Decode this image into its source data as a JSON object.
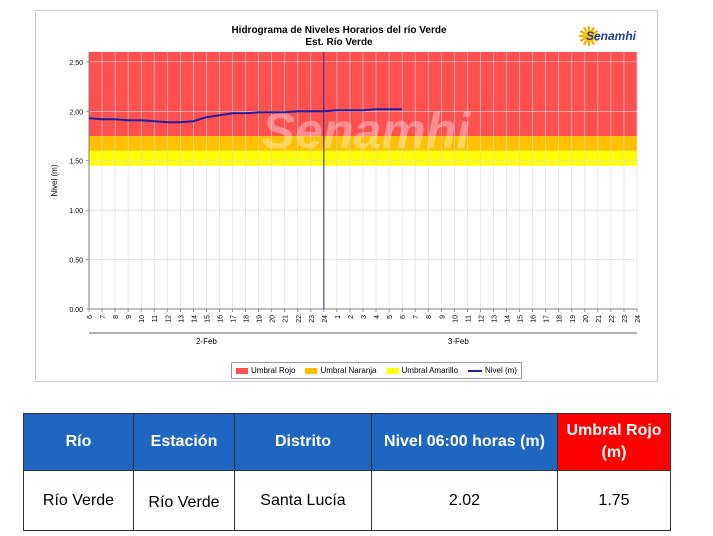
{
  "chart_data": {
    "type": "line",
    "title": "Hidrograma de Niveles Horarios del río Verde",
    "subtitle": "Est. Río Verde",
    "ylabel": "Nivel (m)",
    "ylim": [
      0.0,
      2.6
    ],
    "yticks": [
      "0.00",
      "0.50",
      "1.00",
      "1.50",
      "2.00",
      "2.50"
    ],
    "xticks": [
      "6",
      "7",
      "8",
      "9",
      "10",
      "11",
      "12",
      "13",
      "14",
      "15",
      "16",
      "17",
      "18",
      "19",
      "20",
      "21",
      "22",
      "23",
      "24",
      "1",
      "2",
      "3",
      "4",
      "5",
      "6",
      "7",
      "8",
      "9",
      "10",
      "11",
      "12",
      "13",
      "14",
      "15",
      "16",
      "17",
      "18",
      "19",
      "20",
      "21",
      "22",
      "23",
      "24"
    ],
    "date_labels": [
      "2-Feb",
      "3-Feb"
    ],
    "thresholds": [
      {
        "name": "Umbral Rojo",
        "from": 1.75,
        "to": 2.6,
        "color": "#ff5050"
      },
      {
        "name": "Umbral Naranja",
        "from": 1.6,
        "to": 1.75,
        "color": "#ffc000"
      },
      {
        "name": "Umbral Amarillo",
        "from": 1.45,
        "to": 1.6,
        "color": "#ffff00"
      }
    ],
    "series": [
      {
        "name": "Nivel (m)",
        "color": "#1f1fa0",
        "x": [
          6,
          7,
          8,
          9,
          10,
          11,
          12,
          13,
          14,
          15,
          16,
          17,
          18,
          19,
          20,
          21,
          22,
          23,
          24,
          25,
          26,
          27,
          28,
          29,
          30
        ],
        "y": [
          1.93,
          1.92,
          1.92,
          1.91,
          1.91,
          1.9,
          1.89,
          1.89,
          1.9,
          1.94,
          1.96,
          1.98,
          1.98,
          1.99,
          1.99,
          1.99,
          2.0,
          2.0,
          2.0,
          2.01,
          2.01,
          2.01,
          2.02,
          2.02,
          2.02
        ]
      }
    ],
    "legend": [
      "Umbral Rojo",
      "Umbral Naranja",
      "Umbral Amarillo",
      "Nivel (m)"
    ],
    "legend_position": "bottom",
    "grid": true
  },
  "logo": {
    "text": "Senamhi",
    "color": "#1f3f9c"
  },
  "watermark": "Senamhi",
  "table": {
    "headers": [
      {
        "label": "Río",
        "color": "#1f66c0"
      },
      {
        "label": "Estación",
        "color": "#1f66c0"
      },
      {
        "label": "Distrito",
        "color": "#1f66c0"
      },
      {
        "label": "Nivel  06:00 horas (m)",
        "color": "#1f66c0"
      },
      {
        "label": "Umbral Rojo (m)",
        "color": "#ff0000"
      }
    ],
    "row": [
      "Río Verde",
      "Río Verde",
      "Santa Lucía",
      "2.02",
      "1.75"
    ]
  }
}
